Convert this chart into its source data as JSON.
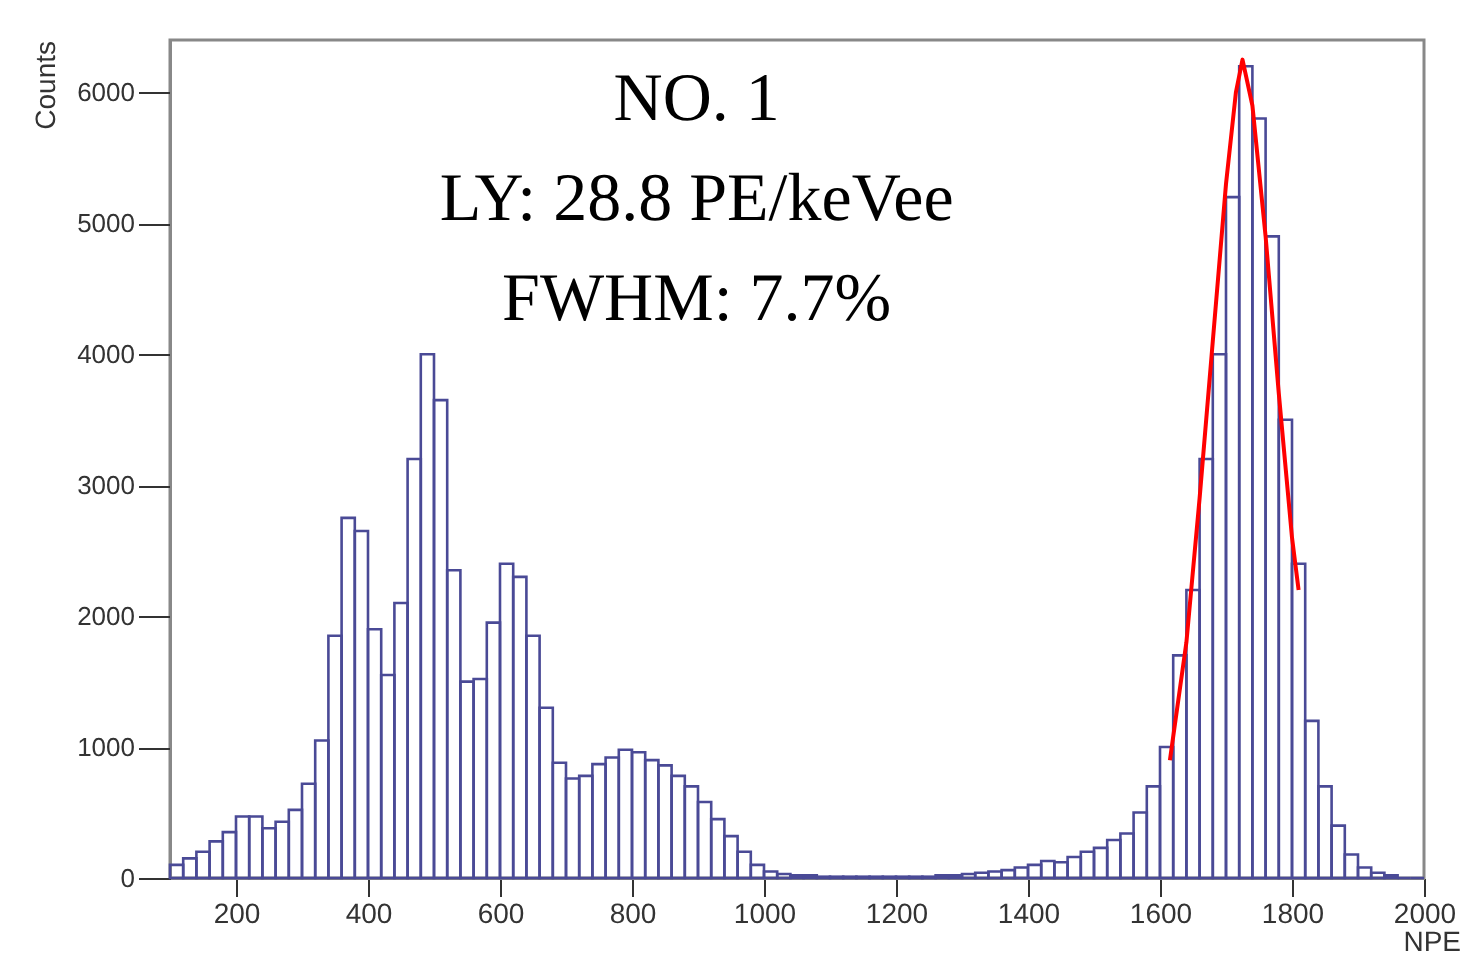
{
  "chart_data": {
    "type": "histogram",
    "xlabel": "NPE",
    "ylabel": "Counts",
    "annotations": [
      "NO. 1",
      "LY:  28.8 PE/keVee",
      "FWHM:  7.7%"
    ],
    "bins": [
      100,
      120,
      140,
      160,
      180,
      200,
      220,
      240,
      260,
      280,
      300,
      320,
      340,
      360,
      380,
      400,
      420,
      440,
      460,
      480,
      500,
      520,
      540,
      560,
      580,
      600,
      620,
      640,
      660,
      680,
      700,
      720,
      740,
      760,
      780,
      800,
      820,
      840,
      860,
      880,
      900,
      920,
      940,
      960,
      980,
      1000,
      1020,
      1040,
      1060,
      1080,
      1100,
      1120,
      1140,
      1160,
      1180,
      1200,
      1220,
      1240,
      1260,
      1280,
      1300,
      1320,
      1340,
      1360,
      1380,
      1400,
      1420,
      1440,
      1460,
      1480,
      1500,
      1520,
      1540,
      1560,
      1580,
      1600,
      1620,
      1640,
      1660,
      1680,
      1700,
      1720,
      1740,
      1760,
      1780,
      1800,
      1820,
      1840,
      1860,
      1880,
      1900,
      1920,
      1940,
      1960,
      1980,
      2000
    ],
    "values": [
      100,
      150,
      200,
      280,
      350,
      470,
      470,
      380,
      430,
      520,
      720,
      1050,
      1850,
      2750,
      2650,
      1900,
      1550,
      2100,
      3200,
      4000,
      3650,
      2350,
      1500,
      1520,
      1950,
      2400,
      2300,
      1850,
      1300,
      880,
      760,
      780,
      870,
      920,
      980,
      960,
      900,
      860,
      780,
      700,
      580,
      450,
      320,
      200,
      100,
      50,
      30,
      20,
      20,
      10,
      10,
      10,
      10,
      10,
      10,
      10,
      10,
      10,
      20,
      20,
      30,
      40,
      50,
      60,
      80,
      100,
      130,
      120,
      160,
      200,
      230,
      290,
      340,
      500,
      700,
      1000,
      1700,
      2200,
      3200,
      4000,
      5200,
      6200,
      5800,
      4900,
      3500,
      2400,
      1200,
      700,
      400,
      180,
      80,
      40,
      20,
      0,
      0
    ],
    "color": "#4a4a96",
    "series": [
      {
        "type": "line",
        "color": "#ff0000",
        "x": [
          1615,
          1640,
          1660,
          1680,
          1700,
          1715,
          1725,
          1740,
          1760,
          1780,
          1800,
          1810
        ],
        "values": [
          900,
          1800,
          2900,
          4100,
          5300,
          6000,
          6250,
          5900,
          4900,
          3700,
          2600,
          2200
        ]
      }
    ],
    "xlim": [
      100,
      2000
    ],
    "xticks": [
      200,
      400,
      600,
      800,
      1000,
      1200,
      1400,
      1600,
      1800,
      2000
    ],
    "ylim": [
      0,
      6400
    ],
    "yticks": [
      0,
      1000,
      2000,
      3000,
      4000,
      5000,
      6000
    ],
    "grid": false,
    "marker": "none",
    "line_style": "solid"
  }
}
